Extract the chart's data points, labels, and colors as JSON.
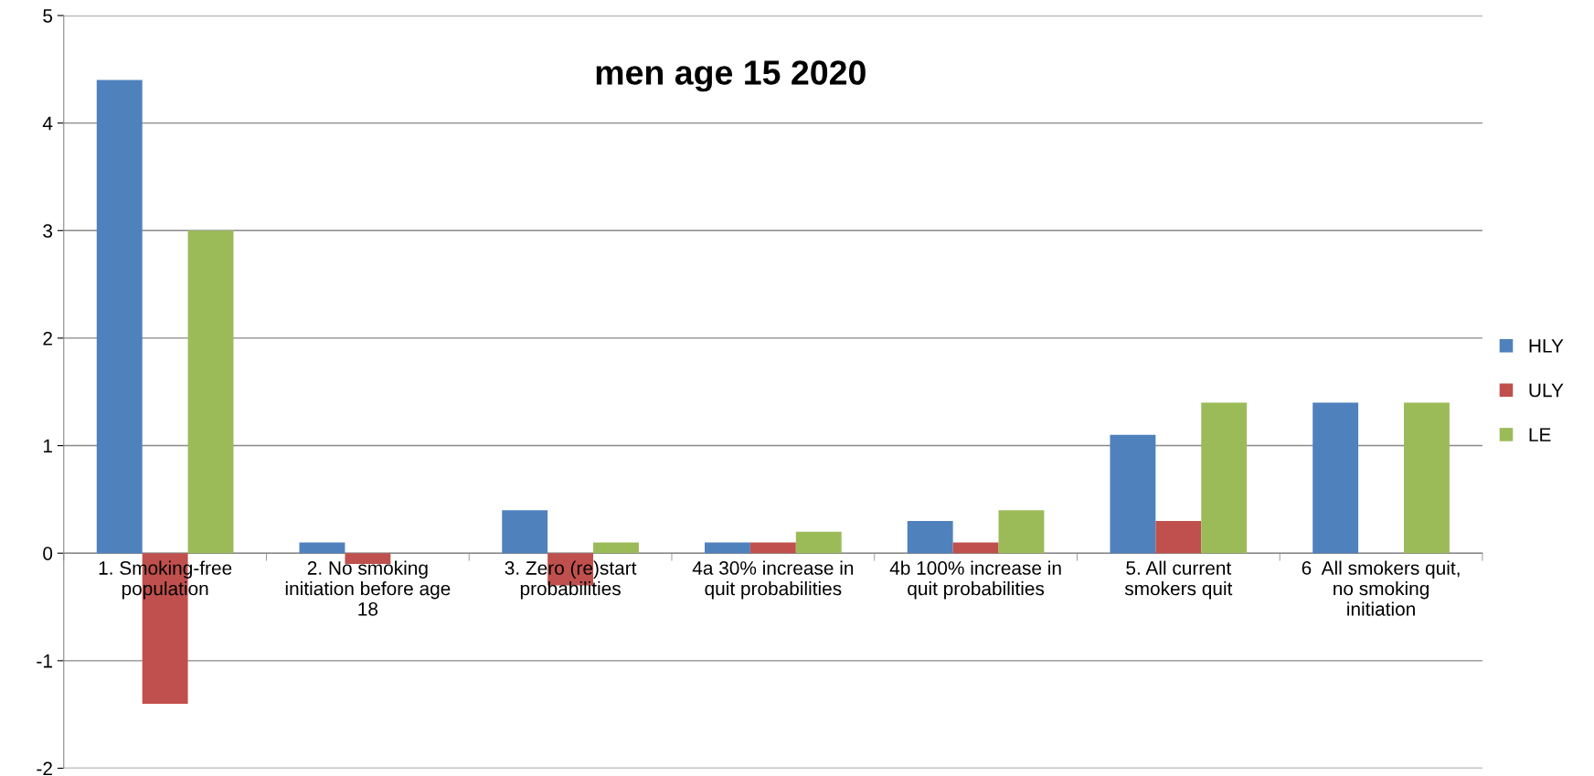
{
  "chart_data": {
    "type": "bar",
    "title": "men age 15 2020",
    "categories": [
      "1. Smoking-free\npopulation",
      "2. No smoking\ninitiation before age\n18",
      "3. Zero (re)start\nprobabilities",
      "4a 30% increase in\nquit probabilities",
      "4b 100% increase in\nquit probabilities",
      "5. All current\nsmokers quit",
      "6  All smokers quit,\nno smoking\ninitiation"
    ],
    "series": [
      {
        "name": "HLY",
        "color": "#4f81bd",
        "values": [
          4.4,
          0.1,
          0.4,
          0.1,
          0.3,
          1.1,
          1.4
        ]
      },
      {
        "name": "ULY",
        "color": "#c0504d",
        "values": [
          -1.4,
          -0.1,
          -0.3,
          0.1,
          0.1,
          0.3,
          0
        ]
      },
      {
        "name": "LE",
        "color": "#9bbb59",
        "values": [
          3.0,
          0,
          0.1,
          0.2,
          0.4,
          1.4,
          1.4
        ]
      }
    ],
    "ylim": [
      -2,
      5
    ],
    "yticks": [
      -2,
      -1,
      0,
      1,
      2,
      3,
      4,
      5
    ],
    "grid": "y",
    "legend": "right"
  }
}
